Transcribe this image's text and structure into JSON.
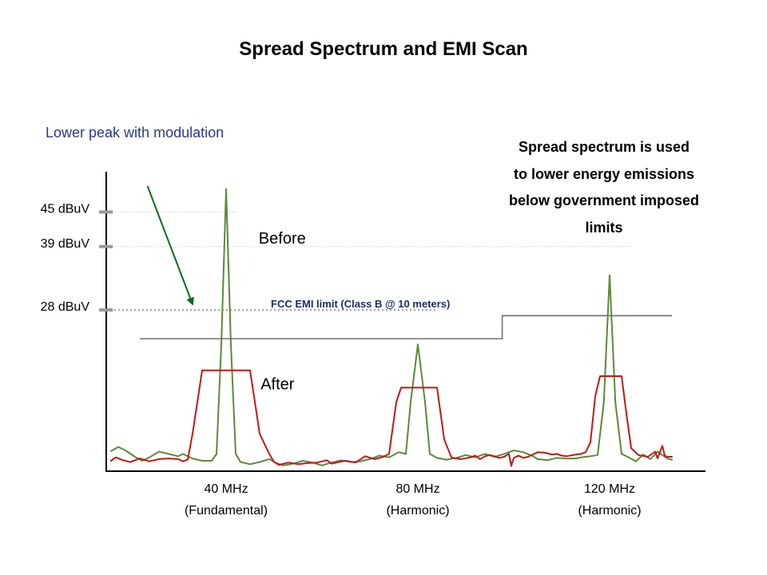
{
  "page": {
    "title": "Spread Spectrum and EMI Scan",
    "note_lines": [
      "Spread spectrum is used",
      "to lower energy emissions",
      "below government imposed",
      "limits"
    ]
  },
  "chart_data": {
    "type": "line",
    "title": "Spread Spectrum and EMI Scan",
    "xlabel": "",
    "ylabel": "",
    "xlim": [
      15,
      140
    ],
    "ylim": [
      0,
      52
    ],
    "grid": false,
    "y_ticks": [
      {
        "value": 45,
        "label": "45 dBuV"
      },
      {
        "value": 39,
        "label": "39 dBuV"
      },
      {
        "value": 28,
        "label": "28 dBuV"
      }
    ],
    "x_categories": [
      {
        "value": 40,
        "label": "40 MHz",
        "sublabel": "(Fundamental)"
      },
      {
        "value": 80,
        "label": "80 MHz",
        "sublabel": "(Harmonic)"
      },
      {
        "value": 120,
        "label": "120 MHz",
        "sublabel": "(Harmonic)"
      }
    ],
    "series": [
      {
        "name": "Before",
        "color": "#5b8a3a",
        "points": [
          [
            16,
            3.5
          ],
          [
            17.5,
            4.2
          ],
          [
            19,
            3.6
          ],
          [
            21,
            2.5
          ],
          [
            22.5,
            1.8
          ],
          [
            24,
            2.4
          ],
          [
            26,
            3.4
          ],
          [
            28,
            3.0
          ],
          [
            30,
            2.6
          ],
          [
            31,
            3.0
          ],
          [
            33,
            2.2
          ],
          [
            35,
            1.8
          ],
          [
            37,
            1.8
          ],
          [
            38,
            3.0
          ],
          [
            39,
            22
          ],
          [
            40,
            49
          ],
          [
            41,
            22
          ],
          [
            42,
            3.0
          ],
          [
            43,
            1.6
          ],
          [
            45,
            1.2
          ],
          [
            47,
            1.6
          ],
          [
            49,
            2.1
          ],
          [
            50.5,
            1.4
          ],
          [
            52,
            1.0
          ],
          [
            54,
            1.3
          ],
          [
            56,
            1.8
          ],
          [
            58,
            1.5
          ],
          [
            60,
            1.0
          ],
          [
            62,
            1.5
          ],
          [
            64,
            1.9
          ],
          [
            66,
            1.6
          ],
          [
            68,
            1.7
          ],
          [
            70,
            2.1
          ],
          [
            72,
            2.7
          ],
          [
            74,
            2.4
          ],
          [
            76,
            3.3
          ],
          [
            77.5,
            3.0
          ],
          [
            78.5,
            12
          ],
          [
            80,
            22
          ],
          [
            81.5,
            12
          ],
          [
            82.5,
            3.0
          ],
          [
            84,
            2.3
          ],
          [
            86,
            2.0
          ],
          [
            88,
            2.3
          ],
          [
            90,
            2.8
          ],
          [
            92,
            2.4
          ],
          [
            94,
            3.0
          ],
          [
            96,
            2.5
          ],
          [
            98,
            3.0
          ],
          [
            100,
            3.6
          ],
          [
            102,
            3.3
          ],
          [
            104,
            2.6
          ],
          [
            105,
            2.1
          ],
          [
            107,
            1.9
          ],
          [
            109,
            2.3
          ],
          [
            111,
            2.2
          ],
          [
            113,
            2.2
          ],
          [
            114,
            2.4
          ],
          [
            116,
            2.6
          ],
          [
            117.5,
            2.8
          ],
          [
            118.8,
            12
          ],
          [
            120,
            34
          ],
          [
            121.2,
            12
          ],
          [
            122.5,
            3.0
          ],
          [
            124,
            2.4
          ],
          [
            125.5,
            1.7
          ],
          [
            127,
            2.9
          ],
          [
            128.5,
            2.1
          ],
          [
            130,
            3.4
          ],
          [
            131,
            2.8
          ],
          [
            132,
            2.2
          ],
          [
            133,
            2.0
          ]
        ]
      },
      {
        "name": "After",
        "color": "#c0181a",
        "points": [
          [
            16,
            1.8
          ],
          [
            17,
            2.4
          ],
          [
            18.5,
            1.9
          ],
          [
            20,
            1.6
          ],
          [
            22,
            2.2
          ],
          [
            24,
            1.7
          ],
          [
            26,
            2.1
          ],
          [
            28,
            2.2
          ],
          [
            30,
            2.1
          ],
          [
            31,
            1.7
          ],
          [
            32,
            2.0
          ],
          [
            33,
            6.5
          ],
          [
            35,
            17.5
          ],
          [
            40,
            17.5
          ],
          [
            45,
            17.5
          ],
          [
            47,
            6.5
          ],
          [
            49,
            3.0
          ],
          [
            50,
            1.6
          ],
          [
            51,
            1.1
          ],
          [
            53,
            1.5
          ],
          [
            55,
            1.2
          ],
          [
            57,
            1.4
          ],
          [
            59,
            1.5
          ],
          [
            61,
            1.9
          ],
          [
            62,
            1.3
          ],
          [
            63.5,
            1.6
          ],
          [
            65,
            1.8
          ],
          [
            67,
            1.5
          ],
          [
            69,
            2.6
          ],
          [
            71,
            2.1
          ],
          [
            72.5,
            2.4
          ],
          [
            74,
            3.0
          ],
          [
            75.5,
            12
          ],
          [
            76.5,
            14.5
          ],
          [
            80,
            14.5
          ],
          [
            84,
            14.5
          ],
          [
            85.5,
            5.5
          ],
          [
            87,
            2.4
          ],
          [
            88,
            2.2
          ],
          [
            89,
            2.1
          ],
          [
            91,
            2.4
          ],
          [
            92,
            2.7
          ],
          [
            93,
            2.1
          ],
          [
            94,
            2.6
          ],
          [
            95,
            2.8
          ],
          [
            96,
            2.6
          ],
          [
            97,
            2.3
          ],
          [
            98,
            2.5
          ],
          [
            99,
            3.0
          ],
          [
            99.5,
            0.9
          ],
          [
            100,
            2.3
          ],
          [
            101,
            2.7
          ],
          [
            102,
            2.3
          ],
          [
            103,
            2.5
          ],
          [
            104,
            2.9
          ],
          [
            105,
            3.3
          ],
          [
            106.5,
            3.2
          ],
          [
            108,
            2.9
          ],
          [
            109,
            3.0
          ],
          [
            110,
            2.7
          ],
          [
            111,
            2.6
          ],
          [
            113,
            2.9
          ],
          [
            114,
            3.0
          ],
          [
            115,
            3.3
          ],
          [
            116,
            5.0
          ],
          [
            117,
            13
          ],
          [
            118,
            16.5
          ],
          [
            120,
            16.5
          ],
          [
            122.5,
            16.5
          ],
          [
            123.5,
            10
          ],
          [
            124.5,
            4.0
          ],
          [
            126,
            2.8
          ],
          [
            128,
            2.5
          ],
          [
            129.5,
            3.4
          ],
          [
            130,
            2.2
          ],
          [
            131,
            4.4
          ],
          [
            131.5,
            2.7
          ],
          [
            132,
            2.5
          ],
          [
            133,
            2.5
          ]
        ]
      }
    ],
    "limits": [
      {
        "label": "FCC EMI limit  (Class B @ 10 meters)",
        "segments": [
          [
            22,
            97.6,
            23
          ],
          [
            97.6,
            133,
            27
          ]
        ]
      }
    ],
    "annotations": [
      {
        "text": "Before",
        "x": 46.8,
        "y": 39.5
      },
      {
        "text": "After",
        "x": 47.2,
        "y": 14.2
      },
      {
        "text": "Lower peak with modulation",
        "arrow_from": [
          23.6,
          49.5
        ],
        "arrow_to": [
          33.0,
          29.0
        ]
      }
    ],
    "reference_lines": [
      {
        "value": 45,
        "style": "dotted"
      },
      {
        "value": 39,
        "style": "dotted"
      },
      {
        "value": 28,
        "style": "dotted"
      }
    ]
  }
}
